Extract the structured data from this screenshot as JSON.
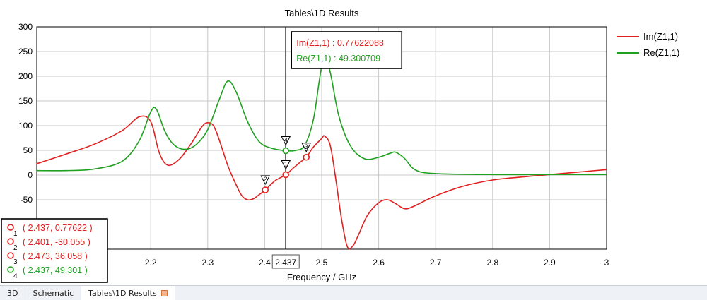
{
  "chart_data": {
    "type": "line",
    "title": "Tables\\1D Results",
    "xlabel": "Frequency / GHz",
    "ylabel": "",
    "xlim": [
      2.0,
      3.0
    ],
    "ylim": [
      -150,
      300
    ],
    "x_ticks": [
      2.2,
      2.3,
      2.4,
      2.5,
      2.6,
      2.7,
      2.8,
      2.9,
      3
    ],
    "x_tick_labels": [
      "2.2",
      "2.3",
      "2.4",
      "2.5",
      "2.6",
      "2.7",
      "2.8",
      "2.9",
      "3"
    ],
    "y_ticks": [
      -50,
      0,
      50,
      100,
      150,
      200,
      250,
      300
    ],
    "y_tick_labels": [
      "-50",
      "0",
      "50",
      "100",
      "150",
      "200",
      "250",
      "300"
    ],
    "grid": true,
    "legend_position": "right",
    "series": [
      {
        "name": "Im(Z1,1)",
        "color": "#e02020",
        "points": [
          [
            2.0,
            23
          ],
          [
            2.05,
            42
          ],
          [
            2.1,
            62
          ],
          [
            2.15,
            90
          ],
          [
            2.18,
            118
          ],
          [
            2.2,
            108
          ],
          [
            2.215,
            45
          ],
          [
            2.23,
            20
          ],
          [
            2.25,
            32
          ],
          [
            2.27,
            62
          ],
          [
            2.29,
            98
          ],
          [
            2.3,
            106
          ],
          [
            2.31,
            100
          ],
          [
            2.32,
            72
          ],
          [
            2.335,
            20
          ],
          [
            2.35,
            -20
          ],
          [
            2.36,
            -42
          ],
          [
            2.37,
            -50
          ],
          [
            2.38,
            -48
          ],
          [
            2.39,
            -40
          ],
          [
            2.401,
            -30.055
          ],
          [
            2.41,
            -20
          ],
          [
            2.42,
            -10
          ],
          [
            2.437,
            0.77622
          ],
          [
            2.45,
            14
          ],
          [
            2.46,
            24
          ],
          [
            2.473,
            36.058
          ],
          [
            2.485,
            56
          ],
          [
            2.5,
            74
          ],
          [
            2.505,
            79
          ],
          [
            2.515,
            60
          ],
          [
            2.525,
            -10
          ],
          [
            2.535,
            -90
          ],
          [
            2.545,
            -145
          ],
          [
            2.555,
            -143
          ],
          [
            2.565,
            -120
          ],
          [
            2.58,
            -82
          ],
          [
            2.6,
            -56
          ],
          [
            2.615,
            -50
          ],
          [
            2.63,
            -58
          ],
          [
            2.645,
            -68
          ],
          [
            2.66,
            -64
          ],
          [
            2.7,
            -42
          ],
          [
            2.75,
            -22
          ],
          [
            2.8,
            -10
          ],
          [
            2.85,
            -4
          ],
          [
            2.9,
            1
          ],
          [
            2.95,
            6
          ],
          [
            3.0,
            11
          ]
        ]
      },
      {
        "name": "Re(Z1,1)",
        "color": "#20a020",
        "points": [
          [
            2.0,
            9
          ],
          [
            2.05,
            9
          ],
          [
            2.1,
            12
          ],
          [
            2.15,
            28
          ],
          [
            2.18,
            70
          ],
          [
            2.2,
            128
          ],
          [
            2.21,
            133
          ],
          [
            2.225,
            88
          ],
          [
            2.24,
            62
          ],
          [
            2.26,
            52
          ],
          [
            2.28,
            62
          ],
          [
            2.3,
            92
          ],
          [
            2.32,
            152
          ],
          [
            2.335,
            190
          ],
          [
            2.35,
            168
          ],
          [
            2.37,
            108
          ],
          [
            2.39,
            68
          ],
          [
            2.41,
            55
          ],
          [
            2.437,
            49.301
          ],
          [
            2.455,
            50
          ],
          [
            2.47,
            60
          ],
          [
            2.485,
            110
          ],
          [
            2.495,
            185
          ],
          [
            2.5,
            220
          ],
          [
            2.505,
            236
          ],
          [
            2.515,
            208
          ],
          [
            2.53,
            120
          ],
          [
            2.55,
            60
          ],
          [
            2.575,
            33
          ],
          [
            2.6,
            36
          ],
          [
            2.62,
            44
          ],
          [
            2.63,
            46
          ],
          [
            2.645,
            34
          ],
          [
            2.665,
            10
          ],
          [
            2.7,
            3
          ],
          [
            2.8,
            1
          ],
          [
            2.9,
            1
          ],
          [
            3.0,
            1
          ]
        ]
      }
    ],
    "cursor": {
      "x": 2.437,
      "x_label": "2.437",
      "readout": [
        {
          "text": "Im(Z1,1) : 0.77622088",
          "color": "#e02020"
        },
        {
          "text": "Re(Z1,1) : 49.300709",
          "color": "#20a020"
        }
      ]
    },
    "markers": [
      {
        "id": "1",
        "x": 2.437,
        "y": 0.77622,
        "color": "#e02020",
        "label": "( 2.437, 0.77622 )"
      },
      {
        "id": "2",
        "x": 2.401,
        "y": -30.055,
        "color": "#e02020",
        "label": "( 2.401, -30.055 )"
      },
      {
        "id": "3",
        "x": 2.473,
        "y": 36.058,
        "color": "#e02020",
        "label": "( 2.473, 36.058 )"
      },
      {
        "id": "4",
        "x": 2.437,
        "y": 49.301,
        "color": "#20a020",
        "label": "( 2.437, 49.301 )"
      }
    ]
  },
  "tabs": [
    {
      "label": "3D",
      "active": false
    },
    {
      "label": "Schematic",
      "active": false
    },
    {
      "label": "Tables\\1D Results",
      "active": true
    }
  ]
}
